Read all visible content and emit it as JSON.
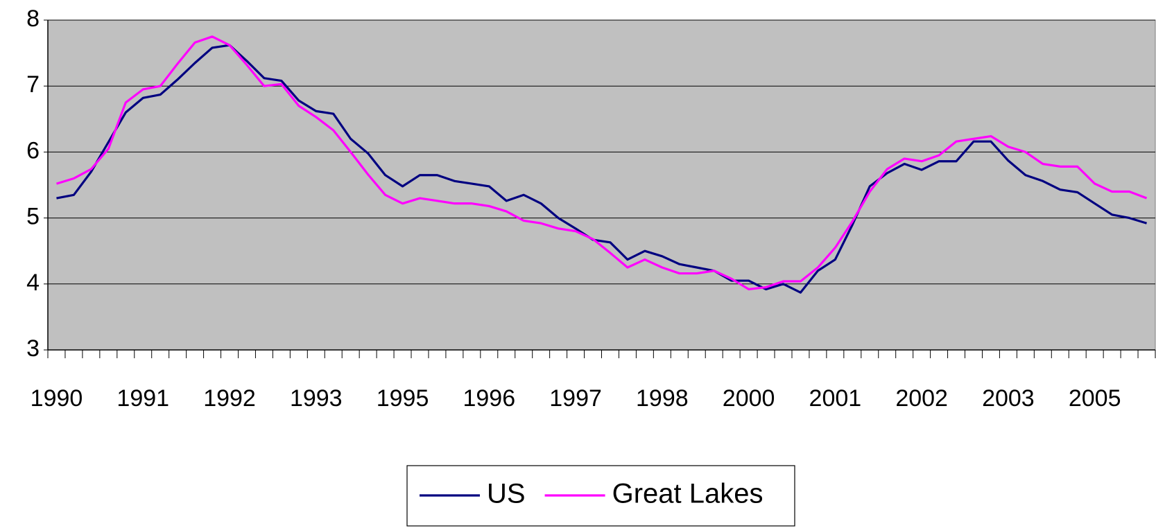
{
  "chart_data": {
    "type": "line",
    "categories": [
      "1990",
      null,
      null,
      null,
      null,
      "1991",
      null,
      null,
      null,
      null,
      "1992",
      null,
      null,
      null,
      null,
      "1993",
      null,
      null,
      null,
      null,
      "1995",
      null,
      null,
      null,
      null,
      "1996",
      null,
      null,
      null,
      null,
      "1997",
      null,
      null,
      null,
      null,
      "1998",
      null,
      null,
      null,
      null,
      "2000",
      null,
      null,
      null,
      null,
      "2001",
      null,
      null,
      null,
      null,
      "2002",
      null,
      null,
      null,
      null,
      "2003",
      null,
      null,
      null,
      null,
      "2005",
      null,
      null,
      null
    ],
    "series": [
      {
        "name": "US",
        "color": "#000080",
        "values": [
          5.3,
          5.35,
          5.7,
          6.15,
          6.6,
          6.82,
          6.87,
          7.1,
          7.35,
          7.58,
          7.62,
          7.38,
          7.12,
          7.08,
          6.78,
          6.62,
          6.58,
          6.2,
          5.98,
          5.65,
          5.48,
          5.65,
          5.65,
          5.56,
          5.52,
          5.48,
          5.26,
          5.35,
          5.22,
          5.0,
          4.84,
          4.67,
          4.63,
          4.37,
          4.5,
          4.42,
          4.3,
          4.25,
          4.2,
          4.05,
          4.05,
          3.92,
          4.0,
          3.87,
          4.2,
          4.37,
          4.9,
          5.48,
          5.68,
          5.82,
          5.73,
          5.86,
          5.86,
          6.16,
          6.16,
          5.87,
          5.65,
          5.56,
          5.43,
          5.39,
          5.22,
          5.05,
          5.0,
          4.92
        ]
      },
      {
        "name": "Great Lakes",
        "color": "#ff00ff",
        "values": [
          5.52,
          5.6,
          5.74,
          6.05,
          6.75,
          6.95,
          7.0,
          7.34,
          7.66,
          7.75,
          7.62,
          7.32,
          7.0,
          7.03,
          6.7,
          6.53,
          6.33,
          6.0,
          5.66,
          5.35,
          5.22,
          5.3,
          5.26,
          5.22,
          5.22,
          5.18,
          5.1,
          4.96,
          4.92,
          4.84,
          4.8,
          4.68,
          4.47,
          4.25,
          4.37,
          4.25,
          4.16,
          4.16,
          4.2,
          4.08,
          3.92,
          3.95,
          4.04,
          4.04,
          4.25,
          4.55,
          4.95,
          5.4,
          5.74,
          5.9,
          5.86,
          5.95,
          6.16,
          6.2,
          6.24,
          6.08,
          6.0,
          5.82,
          5.78,
          5.78,
          5.52,
          5.4,
          5.4,
          5.3
        ]
      }
    ],
    "ylim": [
      3,
      8
    ],
    "yticks": [
      3,
      4,
      5,
      6,
      7,
      8
    ],
    "grid": true,
    "plot_background": "#c0c0c0",
    "legend": "bottom"
  }
}
